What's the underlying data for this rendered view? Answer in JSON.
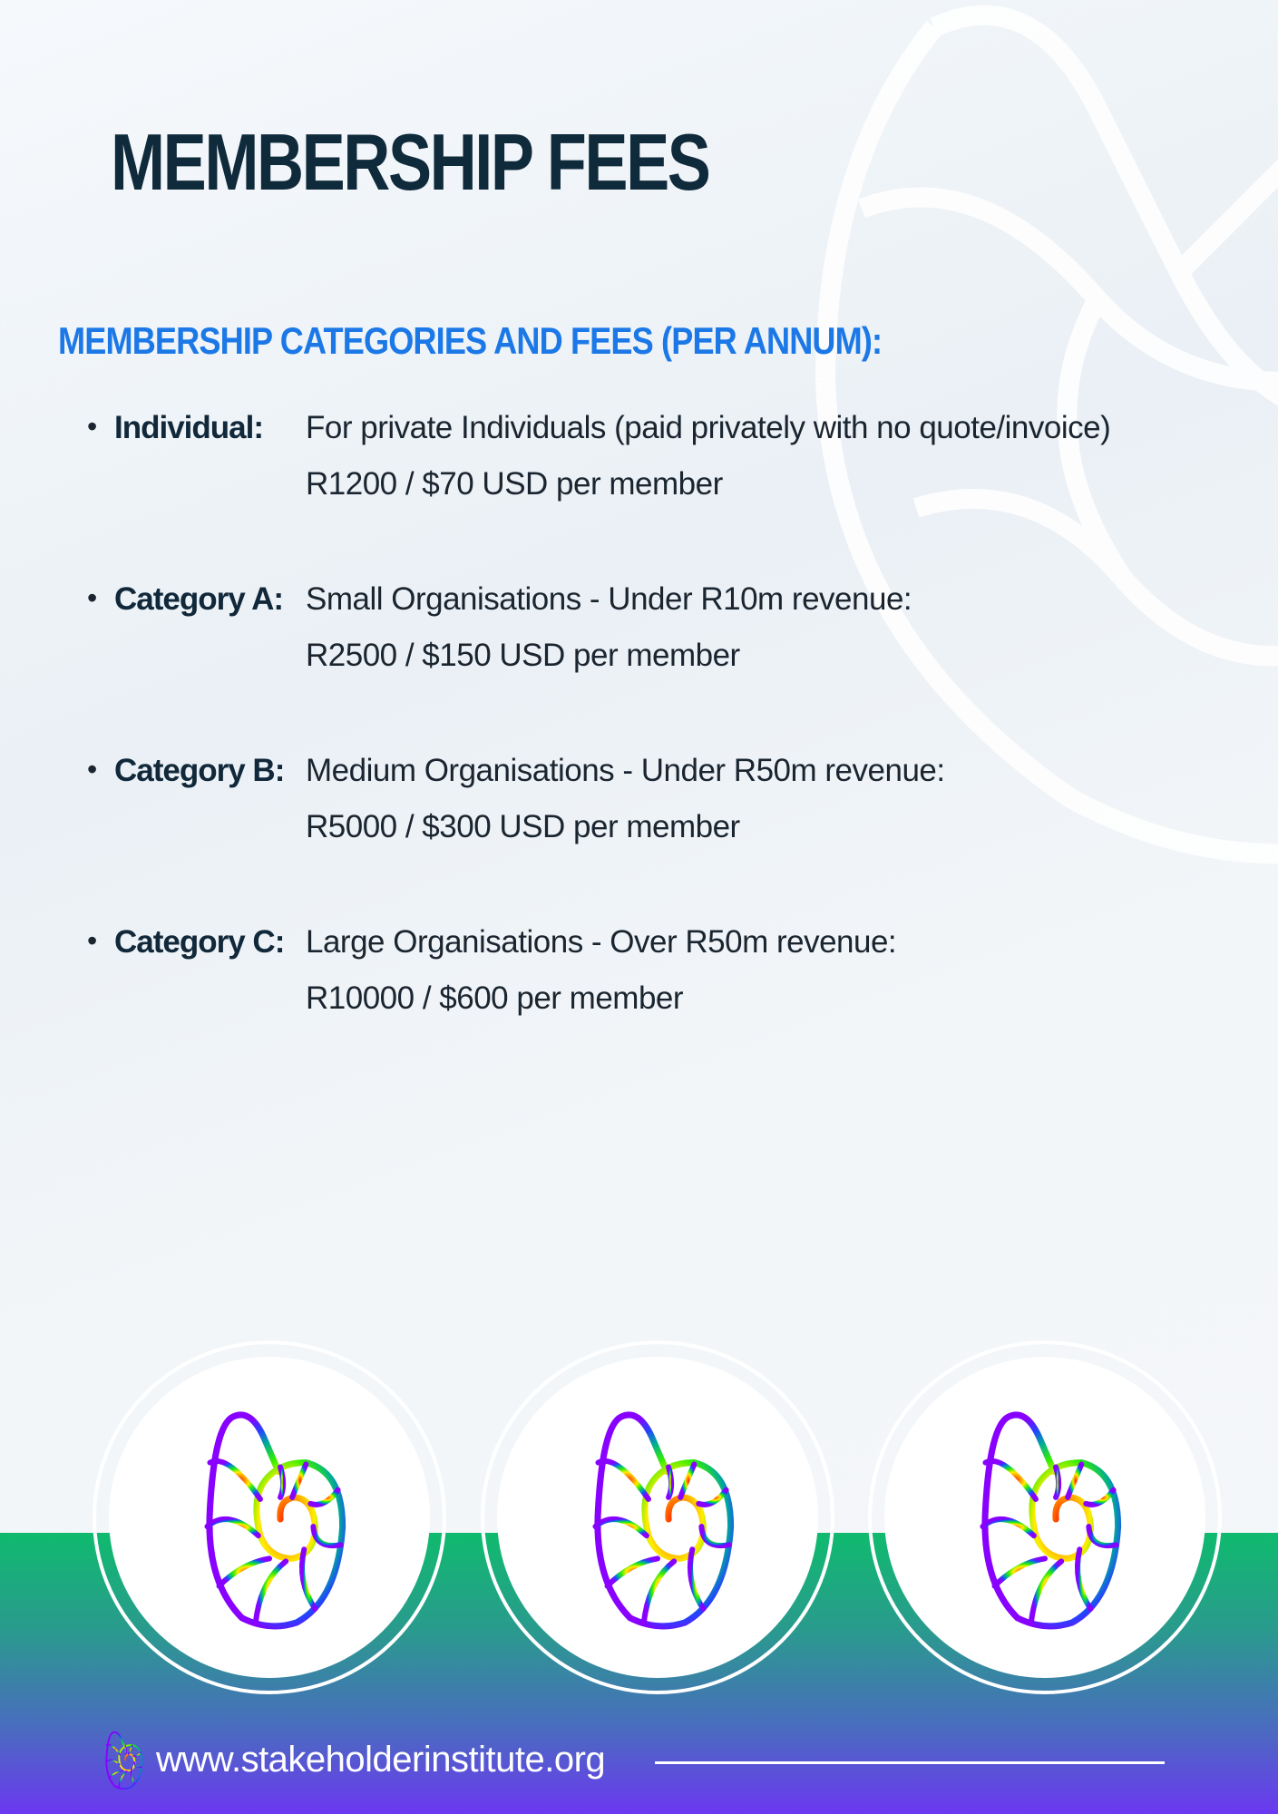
{
  "title": "MEMBERSHIP FEES",
  "subtitle": "MEMBERSHIP CATEGORIES AND FEES (PER ANNUM):",
  "categories": [
    {
      "label": "Individual:",
      "description": "For private Individuals (paid privately with no quote/invoice)",
      "price": "R1200 / $70 USD per member"
    },
    {
      "label": "Category A:",
      "description": "Small Organisations - Under R10m revenue:",
      "price": "R2500 /  $150 USD per member"
    },
    {
      "label": "Category B:",
      "description": "Medium Organisations - Under R50m revenue:",
      "price": "R5000 / $300 USD per member"
    },
    {
      "label": "Category C:",
      "description": "Large Organisations - Over R50m revenue:",
      "price": "R10000 / $600 per member"
    }
  ],
  "footer": {
    "url": "www.stakeholderinstitute.org",
    "logo_icon": "nautilus-shell-icon"
  },
  "colors": {
    "title": "#0f2a3b",
    "subtitle": "#1b78e6",
    "band_top": "#0fba6e",
    "band_bottom": "#6b38f0"
  }
}
